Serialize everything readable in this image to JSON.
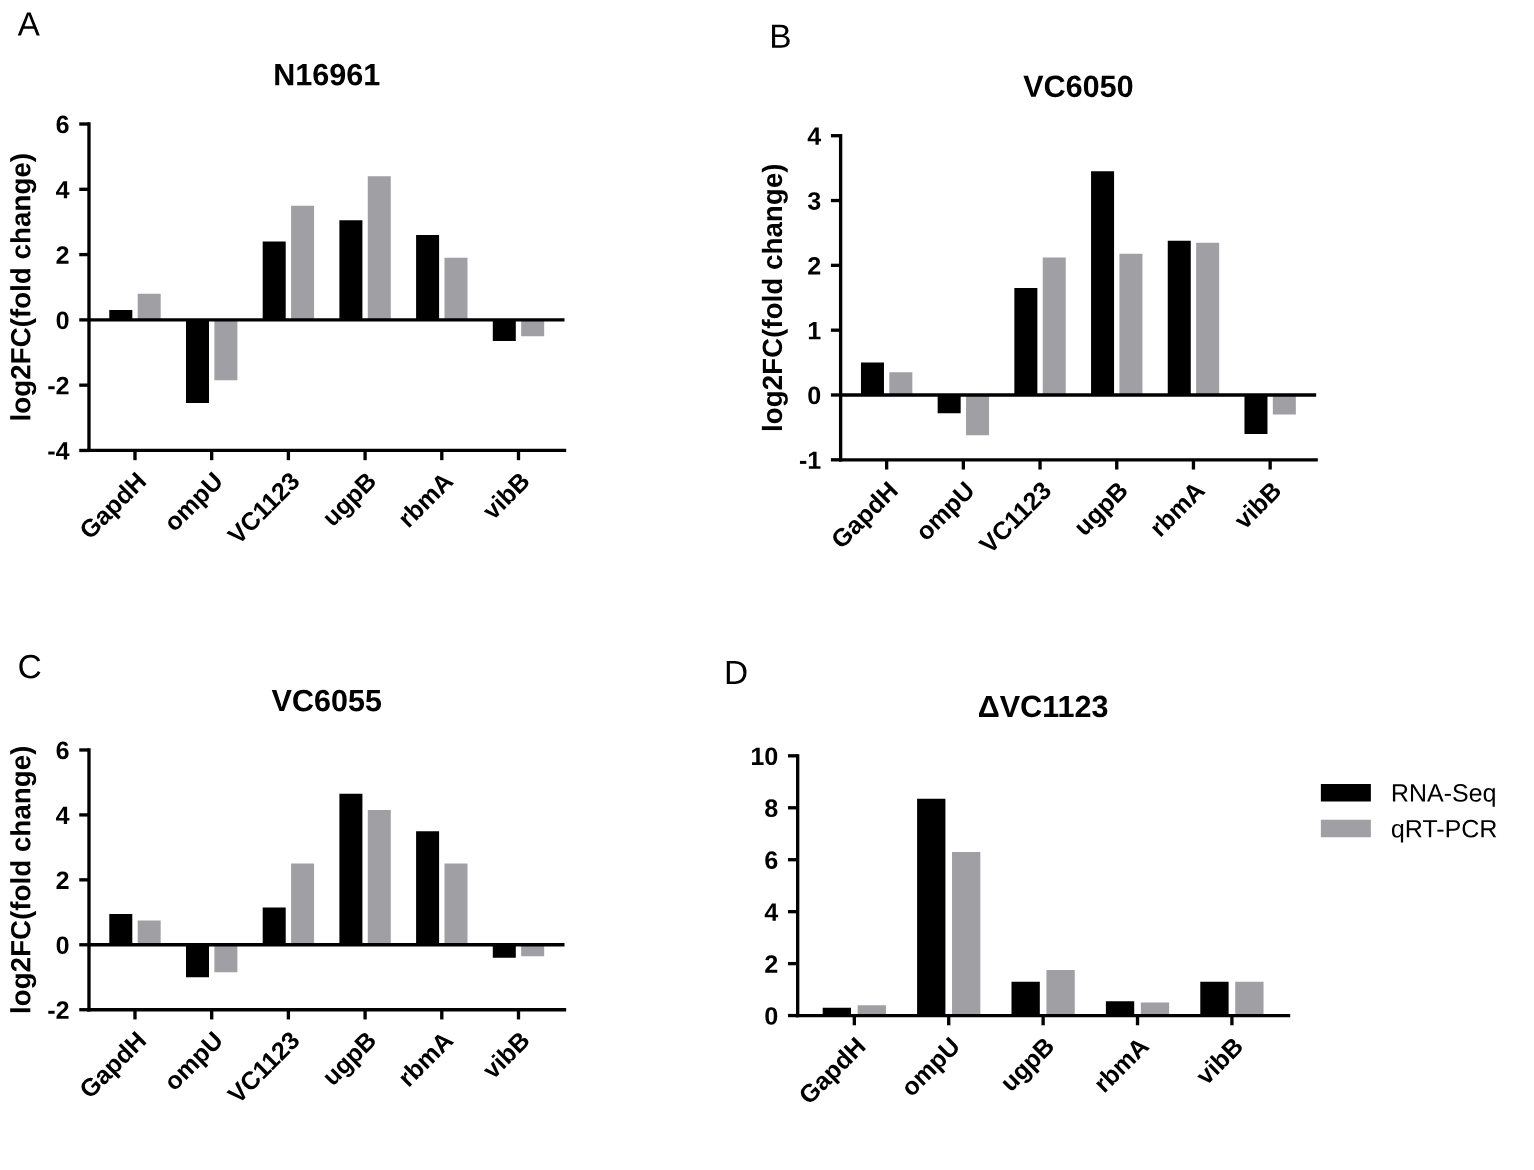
{
  "chart_data": [
    {
      "type": "bar",
      "title": "N16961",
      "ylabel": "log2FC(fold change)",
      "annotations": [
        "A"
      ],
      "categories": [
        "GapdH",
        "ompU",
        "VC1123",
        "ugpB",
        "rbmA",
        "vibB"
      ],
      "ylim": [
        -4,
        6
      ],
      "yticks": [
        -4,
        -2,
        0,
        2,
        4,
        6
      ],
      "ref_lines": [
        {
          "axis": "y",
          "value": 0,
          "color": "#000000"
        }
      ],
      "legend": false,
      "series": [
        {
          "color": "#000000",
          "values": [
            0.3,
            -2.55,
            2.4,
            3.05,
            2.6,
            -0.65
          ]
        },
        {
          "color": "#a0a0a4",
          "values": [
            0.8,
            -1.85,
            3.5,
            4.4,
            1.9,
            -0.5
          ]
        }
      ]
    },
    {
      "type": "bar",
      "title": "VC6050",
      "ylabel": "log2FC(fold change)",
      "annotations": [
        "B"
      ],
      "categories": [
        "GapdH",
        "ompU",
        "VC1123",
        "ugpB",
        "rbmA",
        "vibB"
      ],
      "ylim": [
        -1,
        4
      ],
      "yticks": [
        -1,
        0,
        1,
        2,
        3,
        4
      ],
      "ref_lines": [
        {
          "axis": "y",
          "value": 0,
          "color": "#000000"
        }
      ],
      "legend": false,
      "series": [
        {
          "color": "#000000",
          "values": [
            0.5,
            -0.28,
            1.65,
            3.45,
            2.38,
            -0.6
          ]
        },
        {
          "color": "#a0a0a4",
          "values": [
            0.35,
            -0.62,
            2.12,
            2.18,
            2.35,
            -0.3
          ]
        }
      ]
    },
    {
      "type": "bar",
      "title": "VC6055",
      "ylabel": "log2FC(fold change)",
      "annotations": [
        "C"
      ],
      "categories": [
        "GapdH",
        "ompU",
        "VC1123",
        "ugpB",
        "rbmA",
        "vibB"
      ],
      "ylim": [
        -2,
        6
      ],
      "yticks": [
        -2,
        0,
        2,
        4,
        6
      ],
      "ref_lines": [
        {
          "axis": "y",
          "value": 0,
          "color": "#000000"
        }
      ],
      "legend": false,
      "series": [
        {
          "color": "#000000",
          "values": [
            0.95,
            -1.0,
            1.15,
            4.65,
            3.5,
            -0.4
          ]
        },
        {
          "color": "#a0a0a4",
          "values": [
            0.75,
            -0.85,
            2.5,
            4.15,
            2.5,
            -0.35
          ]
        }
      ]
    },
    {
      "type": "bar",
      "title": "ΔVC1123",
      "annotations": [
        "D"
      ],
      "categories": [
        "GapdH",
        "ompU",
        "ugpB",
        "rbmA",
        "vibB"
      ],
      "ylim": [
        0,
        10
      ],
      "yticks": [
        0,
        2,
        4,
        6,
        8,
        10
      ],
      "grid": false,
      "legend": "right",
      "series": [
        {
          "name": "RNA-Seq",
          "color": "#000000",
          "values": [
            0.3,
            8.35,
            1.3,
            0.55,
            1.3
          ]
        },
        {
          "name": "qRT-PCR",
          "color": "#a0a0a4",
          "values": [
            0.4,
            6.3,
            1.75,
            0.5,
            1.3
          ]
        }
      ]
    }
  ]
}
